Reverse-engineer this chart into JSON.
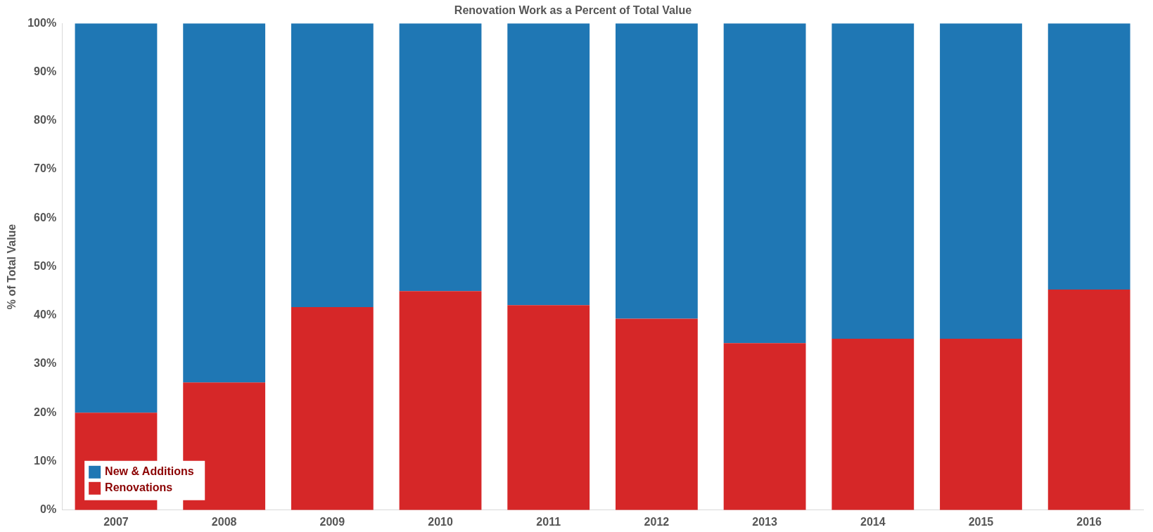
{
  "chart_data": {
    "type": "bar",
    "title": "Renovation Work as a Percent of Total Value",
    "ylabel": "% of Total Value",
    "categories": [
      "2007",
      "2008",
      "2009",
      "2010",
      "2011",
      "2012",
      "2013",
      "2014",
      "2015",
      "2016"
    ],
    "stacked": true,
    "series": [
      {
        "name": "Renovations",
        "color": "#d62728",
        "values": [
          20,
          26.2,
          41.7,
          45,
          42.1,
          39.3,
          34.3,
          35.2,
          35.2,
          45.3
        ]
      },
      {
        "name": "New & Additions",
        "color": "#1f77b4",
        "values": [
          80,
          73.8,
          58.3,
          55,
          57.9,
          60.7,
          65.7,
          64.8,
          64.8,
          54.7
        ]
      }
    ],
    "ylim": [
      0,
      100
    ],
    "yticks": [
      {
        "value": 0,
        "label": "0%"
      },
      {
        "value": 10,
        "label": "10%"
      },
      {
        "value": 20,
        "label": "20%"
      },
      {
        "value": 30,
        "label": "30%"
      },
      {
        "value": 40,
        "label": "40%"
      },
      {
        "value": 50,
        "label": "50%"
      },
      {
        "value": 60,
        "label": "60%"
      },
      {
        "value": 70,
        "label": "70%"
      },
      {
        "value": 80,
        "label": "80%"
      },
      {
        "value": 90,
        "label": "90%"
      },
      {
        "value": 100,
        "label": "100%"
      }
    ],
    "grid": false,
    "legend": "bottom left"
  }
}
